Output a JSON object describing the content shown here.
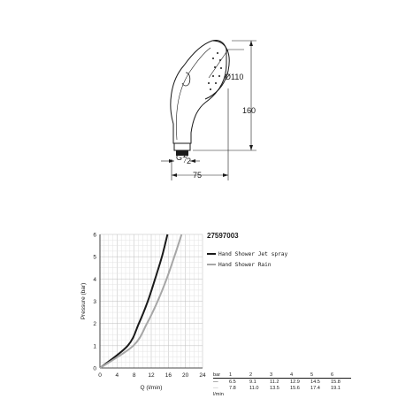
{
  "drawing": {
    "dimensions": {
      "diameter": "Ø110",
      "height": "160",
      "width": "75",
      "thread": "G",
      "thread_fraction_num": "1",
      "thread_fraction_den": "2"
    }
  },
  "product": {
    "code": "27597003"
  },
  "legend": [
    {
      "name": "Hand Shower Jet spray",
      "color": "#1a1a1a"
    },
    {
      "name": "Hand Shower Rain",
      "color": "#a6a6a6"
    }
  ],
  "chart_data": {
    "type": "line",
    "xlabel": "Q (l/min)",
    "ylabel": "Pressure (bar)",
    "xlim": [
      0,
      24
    ],
    "ylim": [
      0,
      6
    ],
    "x_ticks": [
      "0",
      "4",
      "8",
      "12",
      "16",
      "20",
      "24"
    ],
    "y_ticks": [
      "0",
      "1",
      "2",
      "3",
      "4",
      "5",
      "6"
    ],
    "grid": true,
    "series": [
      {
        "name": "Hand Shower Jet spray",
        "color": "#1a1a1a",
        "points": [
          [
            0,
            0
          ],
          [
            6.5,
            1
          ],
          [
            9.1,
            2
          ],
          [
            11.2,
            3
          ],
          [
            12.9,
            4
          ],
          [
            14.5,
            5
          ],
          [
            15.8,
            6
          ]
        ]
      },
      {
        "name": "Hand Shower Rain",
        "color": "#a6a6a6",
        "points": [
          [
            0,
            0
          ],
          [
            7.8,
            1
          ],
          [
            11.0,
            2
          ],
          [
            13.5,
            3
          ],
          [
            15.6,
            4
          ],
          [
            17.4,
            5
          ],
          [
            19.1,
            6
          ]
        ]
      }
    ]
  },
  "table": {
    "unit_bar": "bar",
    "unit_flow": "l/min",
    "bar_values": [
      "1",
      "2",
      "3",
      "4",
      "5",
      "6"
    ],
    "rows": [
      {
        "marker": "—",
        "values": [
          "6.5",
          "9.1",
          "11.2",
          "12.9",
          "14.5",
          "15.8"
        ]
      },
      {
        "marker": "—",
        "values": [
          "7.8",
          "11.0",
          "13.5",
          "15.6",
          "17.4",
          "19.1"
        ]
      }
    ]
  }
}
